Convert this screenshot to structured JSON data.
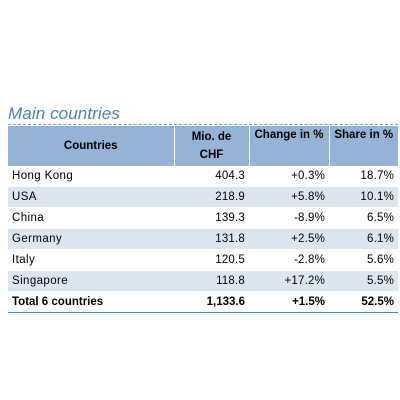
{
  "section_title": "Main countries",
  "table": {
    "headers": {
      "country": "Countries",
      "value_line1": "Mio. de",
      "value_line2": "CHF",
      "change": "Change in %",
      "share": "Share in %"
    },
    "rows": [
      {
        "country": "Hong Kong",
        "value": "404.3",
        "change": "+0.3%",
        "share": "18.7%"
      },
      {
        "country": "USA",
        "value": "218.9",
        "change": "+5.8%",
        "share": "10.1%"
      },
      {
        "country": "China",
        "value": "139.3",
        "change": "-8.9%",
        "share": "6.5%"
      },
      {
        "country": "Germany",
        "value": "131.8",
        "change": "+2.5%",
        "share": "6.1%"
      },
      {
        "country": "Italy",
        "value": "120.5",
        "change": "-2.8%",
        "share": "5.6%"
      },
      {
        "country": "Singapore",
        "value": "118.8",
        "change": "+17.2%",
        "share": "5.5%"
      }
    ],
    "total": {
      "country": "Total 6 countries",
      "value": "1,133.6",
      "change": "+1.5%",
      "share": "52.5%"
    }
  },
  "colors": {
    "title": "#4f81bd",
    "header_bg": "#95b3d7",
    "band_bg": "#dce6f1",
    "rule": "#4f81bd"
  }
}
